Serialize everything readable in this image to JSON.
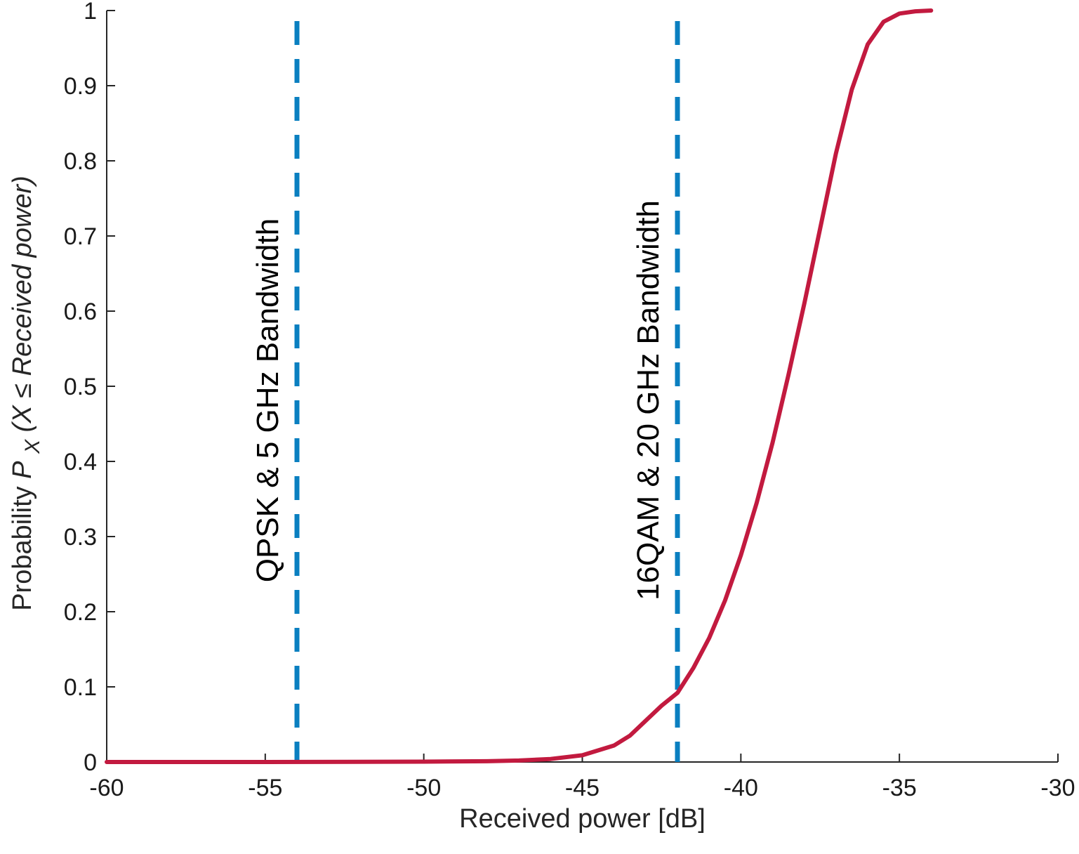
{
  "chart_data": {
    "type": "line",
    "xlabel": "Received power [dB]",
    "ylabel": {
      "prefix": "Probability ",
      "symbol": "P",
      "subscript": "X",
      "open": " (X",
      "relation": "≤",
      "rest": " Received power)"
    },
    "xlim": [
      -60,
      -30
    ],
    "ylim": [
      0,
      1
    ],
    "xticks": [
      -60,
      -55,
      -50,
      -45,
      -40,
      -35,
      -30
    ],
    "xtick_labels": [
      "-60",
      "-55",
      "-50",
      "-45",
      "-40",
      "-35",
      "-30"
    ],
    "yticks": [
      0,
      0.1,
      0.2,
      0.3,
      0.4,
      0.5,
      0.6,
      0.7,
      0.8,
      0.9,
      1
    ],
    "ytick_labels": [
      "0",
      "0.1",
      "0.2",
      "0.3",
      "0.4",
      "0.5",
      "0.6",
      "0.7",
      "0.8",
      "0.9",
      "1"
    ],
    "grid": false,
    "series": [
      {
        "color": "#c21a3f",
        "x": [
          -60,
          -55,
          -50,
          -48,
          -47,
          -46,
          -45,
          -44,
          -43.5,
          -43,
          -42.5,
          -42,
          -41.5,
          -41,
          -40.5,
          -40,
          -39.5,
          -39,
          -38.5,
          -38,
          -37.5,
          -37,
          -36.5,
          -36,
          -35.5,
          -35,
          -34.5,
          -34
        ],
        "y": [
          0,
          0,
          0.0005,
          0.001,
          0.002,
          0.004,
          0.009,
          0.022,
          0.035,
          0.055,
          0.075,
          0.092,
          0.125,
          0.165,
          0.215,
          0.275,
          0.345,
          0.425,
          0.515,
          0.61,
          0.71,
          0.81,
          0.895,
          0.955,
          0.985,
          0.996,
          0.999,
          1
        ]
      }
    ],
    "annotations": [
      {
        "x": -54,
        "label": "QPSK & 5 GHz Bandwidth",
        "color": "#0a7fc0",
        "style": "dashed"
      },
      {
        "x": -42,
        "label": "16QAM & 20 GHz Bandwidth",
        "color": "#0a7fc0",
        "style": "dashed"
      }
    ]
  }
}
